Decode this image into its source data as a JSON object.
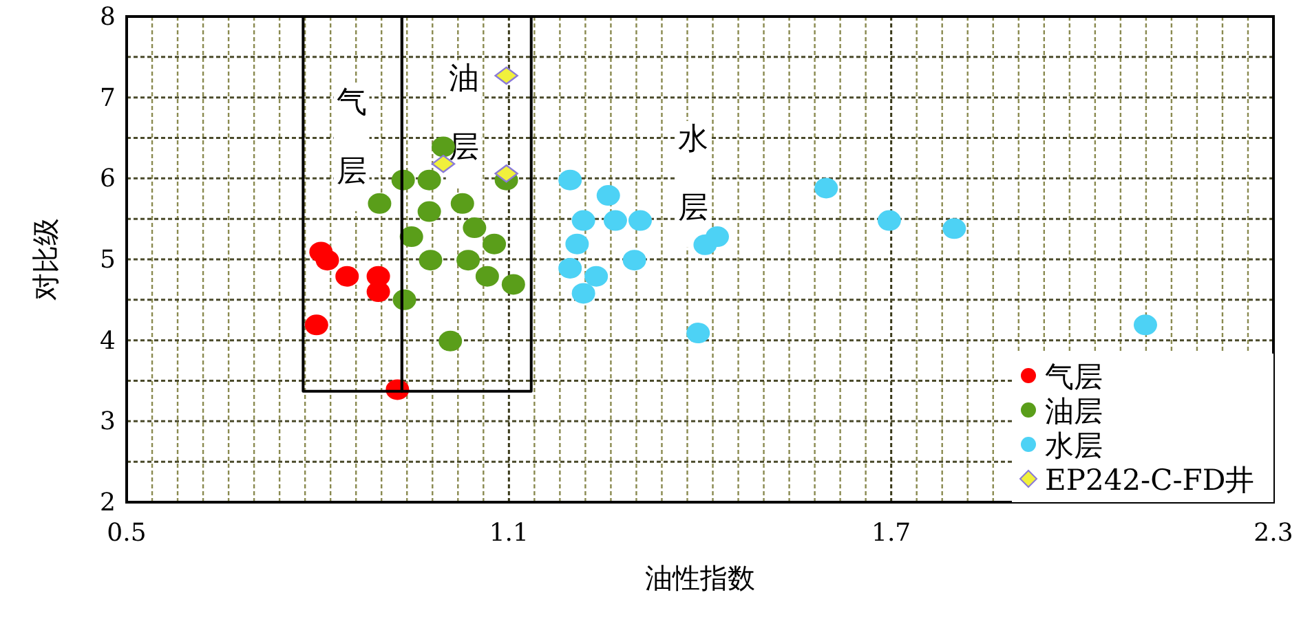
{
  "chart_data": {
    "type": "scatter",
    "xlabel": "油性指数",
    "ylabel": "对比级",
    "xlim": [
      0.5,
      2.3
    ],
    "ylim": [
      2,
      8
    ],
    "xticks": [
      0.5,
      {
        "value": 0.54,
        "label": null
      },
      {
        "value": 0.58,
        "label": null
      },
      {
        "value": 0.62,
        "label": null
      },
      {
        "value": 0.66,
        "label": null
      },
      {
        "value": 0.7,
        "label": null
      },
      {
        "value": 0.74,
        "label": null
      },
      {
        "value": 0.78,
        "label": null
      },
      {
        "value": 0.82,
        "label": null
      },
      {
        "value": 0.86,
        "label": null
      },
      {
        "value": 0.9,
        "label": null
      },
      {
        "value": 0.94,
        "label": null
      },
      {
        "value": 0.98,
        "label": null
      },
      {
        "value": 1.02,
        "label": null
      },
      {
        "value": 1.06,
        "label": null
      },
      1.1,
      {
        "value": 1.14,
        "label": null
      },
      {
        "value": 1.18,
        "label": null
      },
      {
        "value": 1.22,
        "label": null
      },
      {
        "value": 1.26,
        "label": null
      },
      {
        "value": 1.3,
        "label": null
      },
      {
        "value": 1.34,
        "label": null
      },
      {
        "value": 1.38,
        "label": null
      },
      {
        "value": 1.42,
        "label": null
      },
      {
        "value": 1.46,
        "label": null
      },
      {
        "value": 1.5,
        "label": null
      },
      {
        "value": 1.54,
        "label": null
      },
      {
        "value": 1.58,
        "label": null
      },
      {
        "value": 1.62,
        "label": null
      },
      {
        "value": 1.66,
        "label": null
      },
      1.7,
      {
        "value": 1.74,
        "label": null
      },
      {
        "value": 1.78,
        "label": null
      },
      {
        "value": 1.82,
        "label": null
      },
      {
        "value": 1.86,
        "label": null
      },
      {
        "value": 1.9,
        "label": null
      },
      {
        "value": 1.94,
        "label": null
      },
      {
        "value": 1.98,
        "label": null
      },
      {
        "value": 2.02,
        "label": null
      },
      {
        "value": 2.06,
        "label": null
      },
      {
        "value": 2.1,
        "label": null
      },
      {
        "value": 2.14,
        "label": null
      },
      {
        "value": 2.18,
        "label": null
      },
      {
        "value": 2.22,
        "label": null
      },
      {
        "value": 2.26,
        "label": null
      },
      2.3
    ],
    "yticks": [
      2,
      {
        "value": 2.5,
        "label": null
      },
      3,
      {
        "value": 3.5,
        "label": null
      },
      4,
      {
        "value": 4.5,
        "label": null
      },
      5,
      {
        "value": 5.5,
        "label": null
      },
      6,
      {
        "value": 6.5,
        "label": null
      },
      7,
      {
        "value": 7.5,
        "label": null
      },
      8
    ],
    "grid": true,
    "legend": "bottom right",
    "series": [
      {
        "type": "line",
        "color": "#000000",
        "marker": "none",
        "line_style": "solid",
        "x": [
          0.777,
          0.777,
          0.932,
          0.932
        ],
        "values": [
          8,
          3.37,
          3.37,
          8
        ]
      },
      {
        "type": "line",
        "color": "#000000",
        "marker": "none",
        "line_style": "solid",
        "x": [
          0.932,
          0.932,
          1.135,
          1.135
        ],
        "values": [
          8,
          3.37,
          3.37,
          8
        ]
      },
      {
        "name": "气层",
        "color": "#ff0000",
        "marker": "circle",
        "x": [
          0.805,
          0.815,
          0.846,
          0.895,
          0.895,
          0.798,
          0.925
        ],
        "values": [
          5.09,
          4.99,
          4.79,
          4.79,
          4.6,
          4.19,
          3.39
        ]
      },
      {
        "name": "油层",
        "color": "#5a9e1a",
        "marker": "circle",
        "x": [
          0.997,
          0.934,
          0.975,
          1.096,
          0.897,
          0.975,
          1.027,
          1.046,
          1.077,
          0.947,
          0.977,
          1.036,
          1.066,
          1.107,
          0.936,
          1.008
        ],
        "values": [
          6.39,
          5.98,
          5.98,
          5.98,
          5.69,
          5.59,
          5.69,
          5.39,
          5.19,
          5.28,
          4.99,
          4.99,
          4.79,
          4.69,
          4.5,
          3.99
        ]
      },
      {
        "name": "水层",
        "color": "#4dd2f5",
        "marker": "circle",
        "x": [
          1.196,
          1.256,
          1.217,
          1.267,
          1.306,
          1.207,
          1.297,
          1.196,
          1.237,
          1.217,
          1.408,
          1.427,
          1.397,
          1.598,
          1.697,
          1.799,
          2.099
        ],
        "values": [
          5.98,
          5.79,
          5.48,
          5.48,
          5.48,
          5.19,
          4.99,
          4.89,
          4.79,
          4.58,
          5.18,
          5.28,
          4.09,
          5.88,
          5.48,
          5.38,
          4.19
        ]
      },
      {
        "name": "EP242-C-FD井",
        "color": "#f0f03c",
        "marker": "diamond",
        "x": [
          1.096,
          0.997,
          1.096
        ],
        "values": [
          7.27,
          6.18,
          6.06
        ]
      }
    ],
    "annotations": [
      "气层",
      "油层",
      "水层"
    ]
  }
}
